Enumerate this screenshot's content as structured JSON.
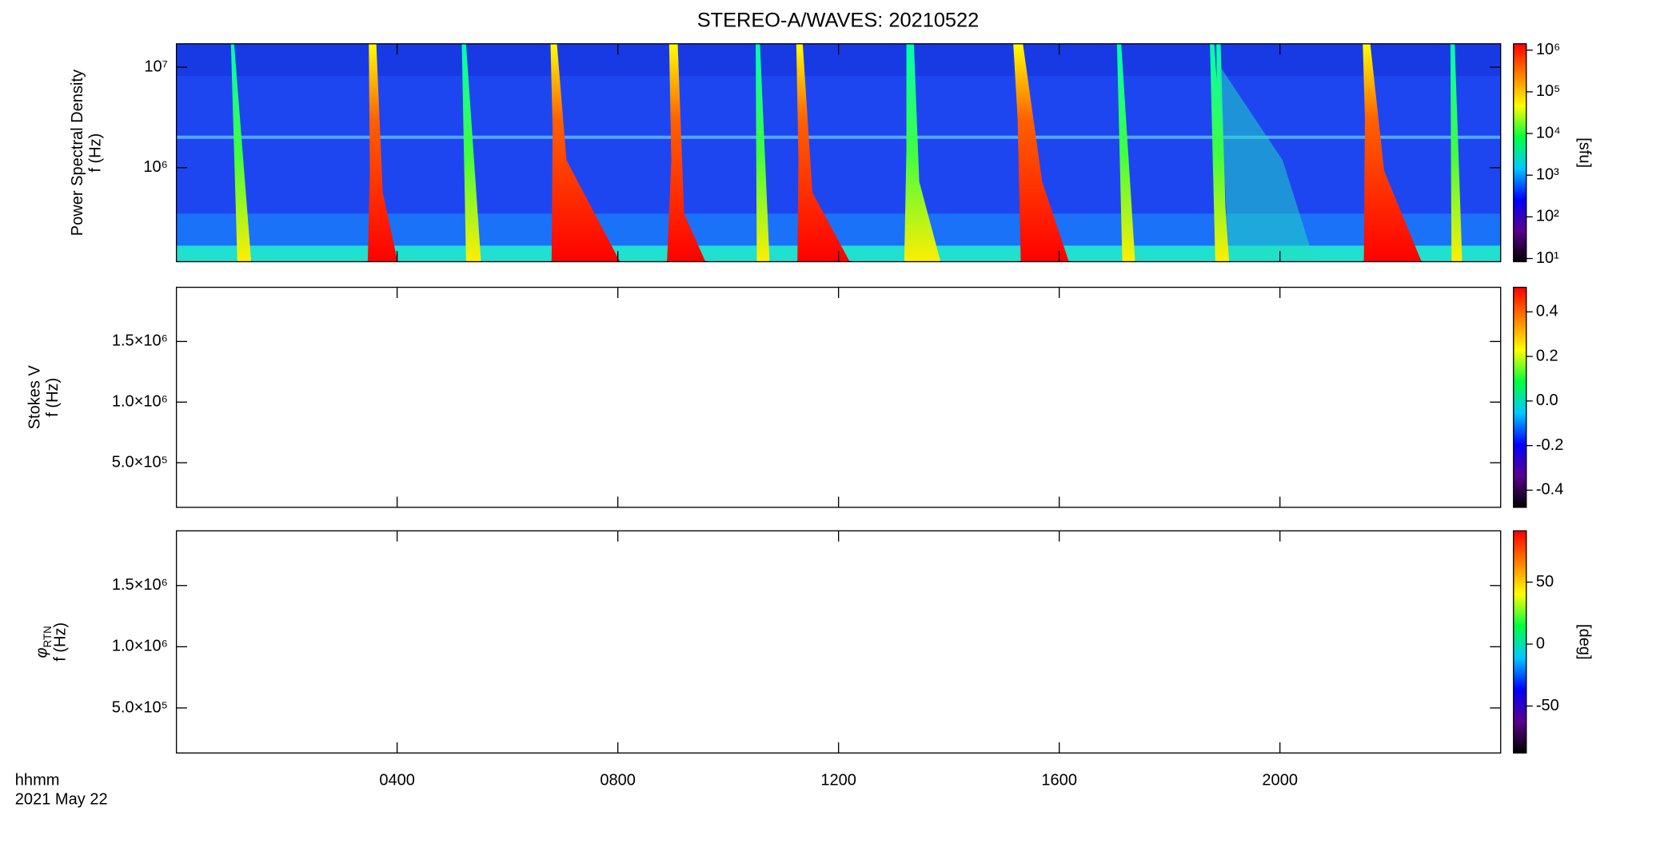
{
  "chart_data": [
    {
      "type": "heatmap",
      "title": "STEREO-A/WAVES: 20210522",
      "ylabel": "Power Spectral Density",
      "ylabel2": "f (Hz)",
      "ylog": true,
      "ylim": [
        116000,
        17100000
      ],
      "yticks": [
        {
          "value": 1000000,
          "label": "10⁶"
        },
        {
          "value": 10000000,
          "label": "10⁷"
        }
      ],
      "xlim": [
        0,
        24
      ],
      "colorbar_label": "[sfu]",
      "clog": true,
      "clim": [
        8.4,
        1420000
      ],
      "cticks": [
        {
          "value": 10,
          "label": "10¹"
        },
        {
          "value": 100,
          "label": "10²"
        },
        {
          "value": 1000,
          "label": "10³"
        },
        {
          "value": 10000,
          "label": "10⁴"
        },
        {
          "value": 100000,
          "label": "10⁵"
        },
        {
          "value": 1000000,
          "label": "10⁶"
        }
      ],
      "colormap": [
        "#000000",
        "#5a008c",
        "#0000ff",
        "#00c8ff",
        "#00ff40",
        "#ffff00",
        "#ff8000",
        "#ff0000"
      ]
    },
    {
      "type": "heatmap",
      "ylabel": "Stokes V",
      "ylabel2": "f (Hz)",
      "ylog": false,
      "ylim": [
        132000,
        1947000
      ],
      "yticks": [
        {
          "value": 500000,
          "label": "5.0×10⁵"
        },
        {
          "value": 1000000,
          "label": "1.0×10⁶"
        },
        {
          "value": 1500000,
          "label": "1.5×10⁶"
        }
      ],
      "xlim": [
        0,
        24
      ],
      "clog": false,
      "clim": [
        -0.477,
        0.51
      ],
      "cticks": [
        -0.4,
        -0.2,
        {
          "value": 0,
          "label": "0.0"
        },
        0.2,
        0.4
      ],
      "colormap": [
        "#000000",
        "#5a008c",
        "#0000ff",
        "#00c8ff",
        "#00ff40",
        "#ffff00",
        "#ff8000",
        "#ff0000"
      ]
    },
    {
      "type": "heatmap",
      "ylabel": "φ",
      "ylabel_subscript": "RTN",
      "ylabel2": "f (Hz)",
      "ylog": false,
      "ylim": [
        132000,
        1947000
      ],
      "yticks": [
        {
          "value": 500000,
          "label": "5.0×10⁵"
        },
        {
          "value": 1000000,
          "label": "1.0×10⁶"
        },
        {
          "value": 1500000,
          "label": "1.5×10⁶"
        }
      ],
      "xlim": [
        0,
        24
      ],
      "xticks": [
        {
          "value": 4,
          "label": "0400"
        },
        {
          "value": 8,
          "label": "0800"
        },
        {
          "value": 12,
          "label": "1200"
        },
        {
          "value": 16,
          "label": "1600"
        },
        {
          "value": 20,
          "label": "2000"
        }
      ],
      "xlabel": "hhmm",
      "xlabel2": "2021 May 22",
      "colorbar_label": "[deg]",
      "clog": false,
      "clim": [
        -87.9,
        91.4
      ],
      "cticks": [
        -50,
        0,
        50
      ],
      "colormap": [
        "#000000",
        "#5a008c",
        "#0000ff",
        "#00c8ff",
        "#00ff40",
        "#ffff00",
        "#ff8000",
        "#ff0000"
      ]
    }
  ]
}
